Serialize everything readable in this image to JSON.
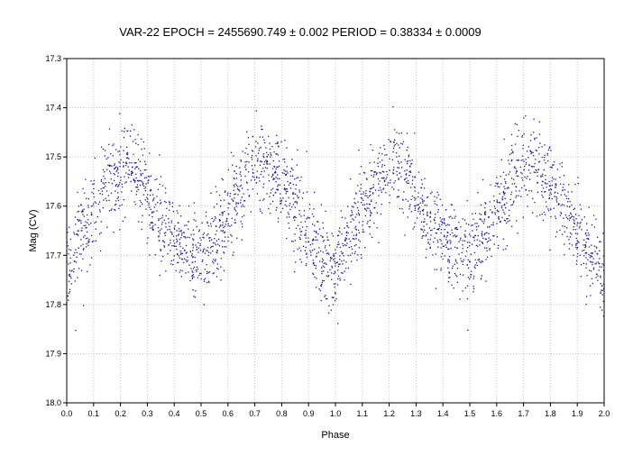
{
  "chart_data": {
    "type": "scatter",
    "title": "VAR-22     EPOCH = 2455690.749 ± 0.002     PERIOD = 0.38334 ± 0.0009",
    "xlabel": "Phase",
    "ylabel": "Mag (CV)",
    "xlim": [
      0.0,
      2.0
    ],
    "ylim": [
      17.3,
      18.0
    ],
    "y_inverted": true,
    "grid": true,
    "legend": "none",
    "x_ticks": [
      "0.0",
      "0.1",
      "0.2",
      "0.3",
      "0.4",
      "0.5",
      "0.6",
      "0.7",
      "0.8",
      "0.9",
      "1.0",
      "1.1",
      "1.2",
      "1.3",
      "1.4",
      "1.5",
      "1.6",
      "1.7",
      "1.8",
      "1.9",
      "2.0"
    ],
    "y_ticks": [
      "17.3",
      "17.4",
      "17.5",
      "17.6",
      "17.7",
      "17.8",
      "17.9",
      "18.0"
    ],
    "marker_color": "#1a1a8c",
    "series": [
      {
        "values_description_x": "phase",
        "x": [
          0.0,
          0.02,
          0.04,
          0.06,
          0.08,
          0.1,
          0.12,
          0.14,
          0.16,
          0.18,
          0.2,
          0.22,
          0.24,
          0.26,
          0.28,
          0.3,
          0.32,
          0.34,
          0.36,
          0.38,
          0.4,
          0.42,
          0.44,
          0.46,
          0.48,
          0.5,
          0.52,
          0.54,
          0.56,
          0.58,
          0.6,
          0.62,
          0.64,
          0.66,
          0.68,
          0.7,
          0.72,
          0.74,
          0.76,
          0.78,
          0.8,
          0.82,
          0.84,
          0.86,
          0.88,
          0.9,
          0.92,
          0.94,
          0.96,
          0.98,
          1.0,
          1.02,
          1.04,
          1.06,
          1.08,
          1.1,
          1.12,
          1.14,
          1.16,
          1.18,
          1.2,
          1.22,
          1.24,
          1.26,
          1.28,
          1.3,
          1.32,
          1.34,
          1.36,
          1.38,
          1.4,
          1.42,
          1.44,
          1.46,
          1.48,
          1.5,
          1.52,
          1.54,
          1.56,
          1.58,
          1.6,
          1.62,
          1.64,
          1.66,
          1.68,
          1.7,
          1.72,
          1.74,
          1.76,
          1.78,
          1.8,
          1.82,
          1.84,
          1.86,
          1.88,
          1.9,
          1.92,
          1.94,
          1.96,
          1.98,
          2.0
        ],
        "y": [
          17.73,
          17.7,
          17.67,
          17.65,
          17.63,
          17.61,
          17.59,
          17.57,
          17.55,
          17.54,
          17.53,
          17.52,
          17.52,
          17.53,
          17.55,
          17.58,
          17.61,
          17.63,
          17.65,
          17.66,
          17.67,
          17.68,
          17.69,
          17.69,
          17.7,
          17.7,
          17.69,
          17.68,
          17.66,
          17.64,
          17.61,
          17.59,
          17.57,
          17.55,
          17.53,
          17.52,
          17.52,
          17.52,
          17.53,
          17.54,
          17.55,
          17.57,
          17.59,
          17.62,
          17.64,
          17.66,
          17.68,
          17.7,
          17.71,
          17.72,
          17.73,
          17.7,
          17.67,
          17.65,
          17.63,
          17.61,
          17.59,
          17.57,
          17.55,
          17.54,
          17.53,
          17.52,
          17.52,
          17.53,
          17.55,
          17.58,
          17.61,
          17.63,
          17.65,
          17.66,
          17.67,
          17.68,
          17.69,
          17.69,
          17.7,
          17.7,
          17.69,
          17.68,
          17.66,
          17.64,
          17.61,
          17.59,
          17.57,
          17.55,
          17.53,
          17.52,
          17.52,
          17.52,
          17.53,
          17.54,
          17.55,
          17.57,
          17.59,
          17.62,
          17.64,
          17.66,
          17.68,
          17.7,
          17.71,
          17.72,
          17.73
        ],
        "scatter_half_width": 0.06,
        "points_per_step": 26
      }
    ]
  }
}
